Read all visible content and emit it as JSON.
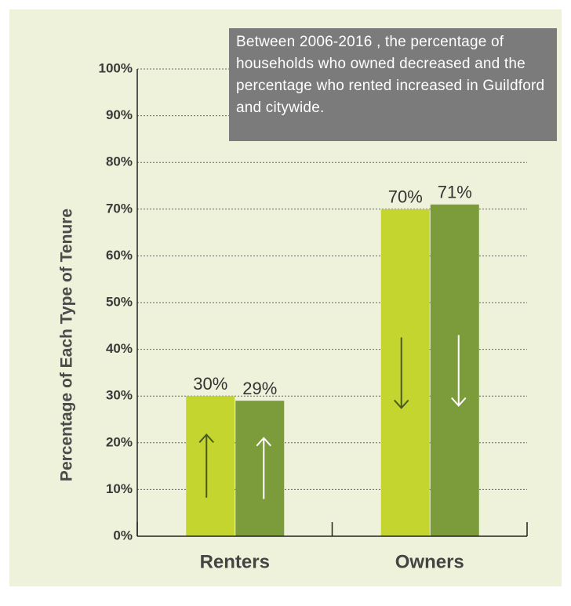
{
  "chart_data": {
    "type": "bar",
    "y_label": "Percentage of Each Type of Tenure",
    "annotation": "Between 2006-2016 , the percentage of households who owned decreased and the percentage who rented increased in Guildford and citywide.",
    "categories": [
      "Renters",
      "Owners"
    ],
    "series": [
      {
        "color": "#c4d52f",
        "values": [
          30,
          70
        ],
        "value_labels": [
          "30%",
          "70%"
        ]
      },
      {
        "color": "#7c9c3c",
        "values": [
          29,
          71
        ],
        "value_labels": [
          "29%",
          "71%"
        ]
      }
    ],
    "ylim": [
      0,
      100
    ],
    "yticks": [
      {
        "value": 0,
        "label": "0%"
      },
      {
        "value": 10,
        "label": "10%"
      },
      {
        "value": 20,
        "label": "20%"
      },
      {
        "value": 30,
        "label": "30%"
      },
      {
        "value": 40,
        "label": "40%"
      },
      {
        "value": 50,
        "label": "50%"
      },
      {
        "value": 60,
        "label": "60%"
      },
      {
        "value": 70,
        "label": "70%"
      },
      {
        "value": 80,
        "label": "80%"
      },
      {
        "value": 90,
        "label": "90%"
      },
      {
        "value": 100,
        "label": "100%"
      }
    ],
    "grid": true
  }
}
